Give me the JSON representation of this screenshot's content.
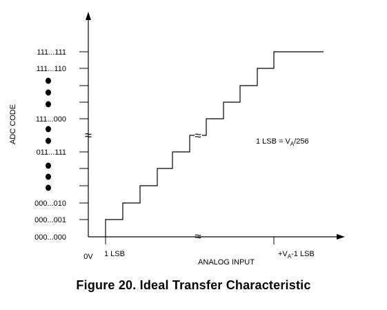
{
  "figure": {
    "caption": "Figure 20.  Ideal Transfer Characteristic",
    "y_axis_title": "ADC CODE",
    "x_axis_title": "ANALOG INPUT",
    "y_ticks": [
      "111...111",
      "111...110",
      "111...000",
      "011...111",
      "000...010",
      "000...001",
      "000...000"
    ],
    "x_ticks": {
      "origin": "0V",
      "first": "1 LSB",
      "last_prefix": "+V",
      "last_sub": "A",
      "last_suffix": "-1 LSB"
    },
    "annotation": {
      "prefix": "1 LSB = V",
      "sub": "A",
      "suffix": "/256"
    },
    "axis_break_symbol": "≈",
    "color": "#000000"
  }
}
